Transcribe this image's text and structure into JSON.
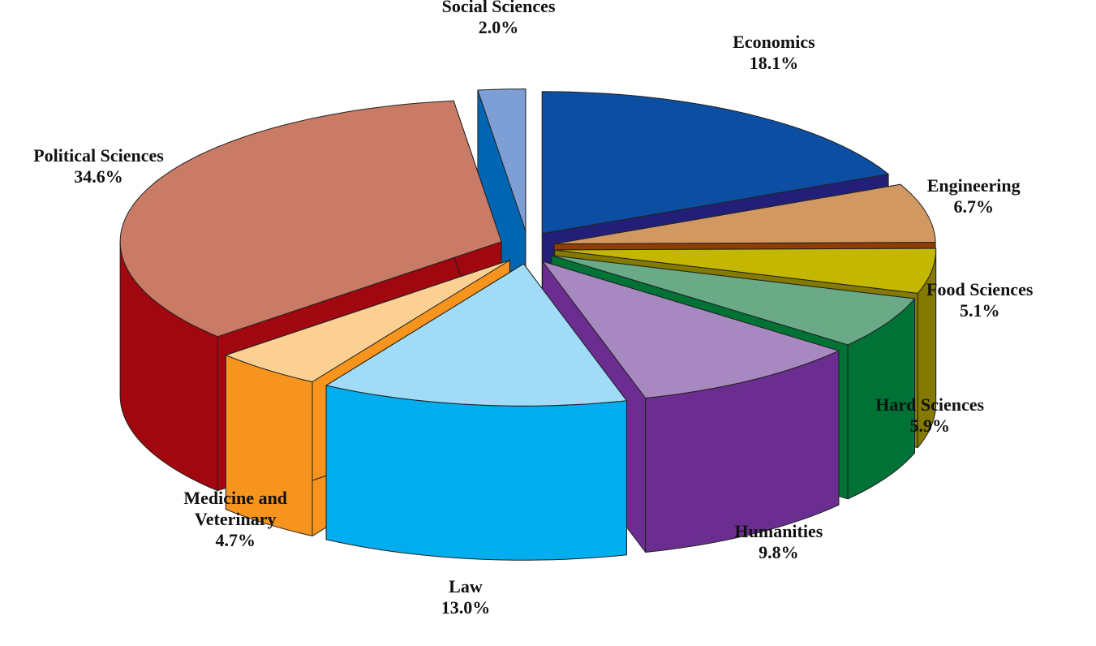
{
  "chart_data": {
    "type": "pie3d",
    "categories": [
      "Economics",
      "Engineering",
      "Food Sciences",
      "Hard Sciences",
      "Humanities",
      "Law",
      "Medicine and Veterinary",
      "Political Sciences",
      "Social Sciences"
    ],
    "values": [
      18.1,
      6.7,
      5.1,
      5.9,
      9.8,
      13.0,
      4.7,
      34.6,
      2.0
    ],
    "value_labels": [
      "18.1%",
      "6.7%",
      "5.1%",
      "5.9%",
      "9.8%",
      "13.0%",
      "4.7%",
      "34.6%",
      "2.0%"
    ],
    "colors": [
      "#0b4ea2",
      "#d19862",
      "#c4b700",
      "#6aaa86",
      "#a888c0",
      "#a0dcf7",
      "#fbd092",
      "#c97b65",
      "#7d9fd6"
    ],
    "side_colors": [
      "#231f78",
      "#8f3c05",
      "#847a00",
      "#007236",
      "#6c2d91",
      "#00aeef",
      "#f7941d",
      "#a0070f",
      "#0066b3"
    ]
  }
}
